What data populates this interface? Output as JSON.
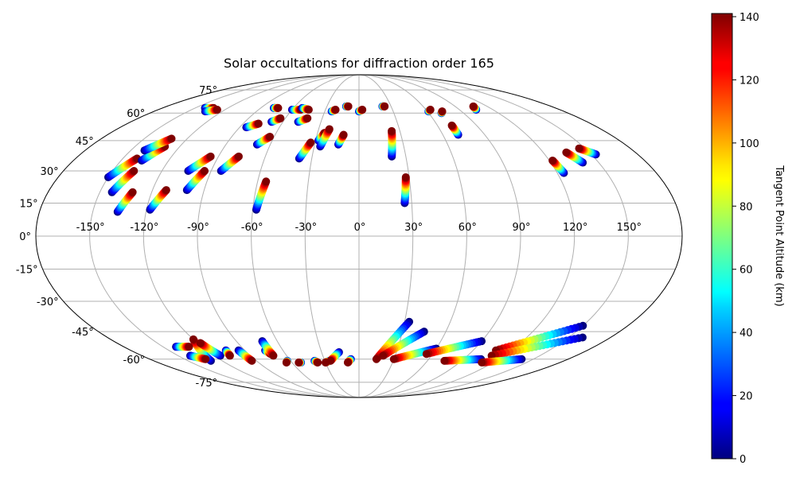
{
  "chart_data": {
    "type": "scatter",
    "projection": "mollweide",
    "title": "Solar occultations for diffraction order 165",
    "grid": true,
    "longitude_ticks": [
      "-150°",
      "-120°",
      "-90°",
      "-60°",
      "-30°",
      "0°",
      "30°",
      "60°",
      "90°",
      "120°",
      "150°"
    ],
    "latitude_ticks": [
      "75°",
      "60°",
      "45°",
      "30°",
      "15°",
      "0°",
      "-15°",
      "-30°",
      "-45°",
      "-60°",
      "-75°"
    ],
    "colorbar": {
      "label": "Tangent Point Altitude (km)",
      "colormap": "jet",
      "range": [
        0,
        141
      ],
      "ticks": [
        "0",
        "20",
        "40",
        "60",
        "80",
        "100",
        "120",
        "140"
      ]
    },
    "series": [
      {
        "values": [
          [
            -136,
            11,
            0
          ],
          [
            -131,
            20,
            141
          ]
        ]
      },
      {
        "values": [
          [
            -143,
            20,
            0
          ],
          [
            -137,
            30,
            141
          ]
        ]
      },
      {
        "values": [
          [
            -150,
            27,
            0
          ],
          [
            -141,
            36,
            141
          ]
        ]
      },
      {
        "values": [
          [
            -137,
            35,
            0
          ],
          [
            -130,
            42,
            141
          ]
        ]
      },
      {
        "values": [
          [
            -141,
            40,
            0
          ],
          [
            -131,
            46,
            141
          ]
        ]
      },
      {
        "values": [
          [
            -118,
            12,
            0
          ],
          [
            -112,
            21,
            141
          ]
        ]
      },
      {
        "values": [
          [
            -104,
            30,
            0
          ],
          [
            -95,
            37,
            141
          ]
        ]
      },
      {
        "values": [
          [
            -100,
            21,
            0
          ],
          [
            -94,
            30,
            141
          ]
        ]
      },
      {
        "values": [
          [
            -84,
            30,
            0
          ],
          [
            -77,
            37,
            141
          ]
        ]
      },
      {
        "values": [
          [
            -85,
            52,
            0
          ],
          [
            -78,
            54,
            141
          ]
        ]
      },
      {
        "values": [
          [
            -58,
            12,
            0
          ],
          [
            -55,
            25,
            141
          ]
        ]
      },
      {
        "values": [
          [
            -69,
            43,
            0
          ],
          [
            -63,
            47,
            141
          ]
        ]
      },
      {
        "values": [
          [
            -69,
            55,
            0
          ],
          [
            -64,
            57,
            141
          ]
        ]
      },
      {
        "values": [
          [
            -38,
            36,
            0
          ],
          [
            -33,
            44,
            141
          ]
        ]
      },
      {
        "values": [
          [
            -28,
            45,
            0
          ],
          [
            -25,
            49,
            141
          ]
        ]
      },
      {
        "values": [
          [
            -14,
            43,
            0
          ],
          [
            -11,
            48,
            141
          ]
        ]
      },
      {
        "values": [
          [
            -48,
            55,
            0
          ],
          [
            -42,
            57,
            141
          ]
        ]
      },
      {
        "values": [
          [
            -26,
            42,
            0
          ],
          [
            -22,
            51,
            141
          ]
        ]
      },
      {
        "values": [
          [
            -24,
            61,
            0
          ],
          [
            -21,
            62,
            141
          ]
        ]
      },
      {
        "values": [
          [
            -12,
            64,
            0
          ],
          [
            -10,
            64,
            141
          ]
        ]
      },
      {
        "values": [
          [
            0,
            61,
            0
          ],
          [
            3,
            62,
            141
          ]
        ]
      },
      {
        "values": [
          [
            21,
            37,
            0
          ],
          [
            24,
            50,
            141
          ]
        ]
      },
      {
        "values": [
          [
            26,
            15,
            0
          ],
          [
            28,
            27,
            141
          ]
        ]
      },
      {
        "values": [
          [
            22,
            64,
            0
          ],
          [
            24,
            64,
            141
          ]
        ]
      },
      {
        "values": [
          [
            61,
            61,
            0
          ],
          [
            64,
            62,
            141
          ]
        ]
      },
      {
        "values": [
          [
            71,
            60,
            0
          ],
          [
            73,
            61,
            141
          ]
        ]
      },
      {
        "values": [
          [
            71,
            48,
            0
          ],
          [
            71,
            53,
            141
          ]
        ]
      },
      {
        "values": [
          [
            105,
            62,
            0
          ],
          [
            107,
            64,
            141
          ]
        ]
      },
      {
        "values": [
          [
            124,
            29,
            0
          ],
          [
            122,
            35,
            141
          ]
        ]
      },
      {
        "values": [
          [
            140,
            34,
            0
          ],
          [
            135,
            39,
            141
          ]
        ]
      },
      {
        "values": [
          [
            153,
            38,
            0
          ],
          [
            146,
            41,
            141
          ]
        ]
      },
      {
        "values": [
          [
            -141,
            63,
            0
          ],
          [
            -133,
            63,
            141
          ]
        ]
      },
      {
        "values": [
          [
            -135,
            61,
            0
          ],
          [
            -127,
            62,
            141
          ]
        ]
      },
      {
        "values": [
          [
            -78,
            63,
            0
          ],
          [
            -74,
            63,
            141
          ]
        ]
      },
      {
        "values": [
          [
            -60,
            62,
            0
          ],
          [
            -52,
            62,
            141
          ]
        ]
      },
      {
        "values": [
          [
            -52,
            63,
            0
          ],
          [
            -45,
            62,
            141
          ]
        ]
      },
      {
        "values": [
          [
            -130,
            -61,
            0
          ],
          [
            -120,
            -49,
            141
          ]
        ]
      },
      {
        "values": [
          [
            -140,
            -53,
            0
          ],
          [
            -130,
            -53,
            141
          ]
        ]
      },
      {
        "values": [
          [
            -140,
            -58,
            0
          ],
          [
            -132,
            -60,
            141
          ]
        ]
      },
      {
        "values": [
          [
            -115,
            -58,
            0
          ],
          [
            -118,
            -51,
            141
          ]
        ]
      },
      {
        "values": [
          [
            -105,
            -55,
            0
          ],
          [
            -107,
            -58,
            141
          ]
        ]
      },
      {
        "values": [
          [
            -95,
            -55,
            0
          ],
          [
            -94,
            -61,
            141
          ]
        ]
      },
      {
        "values": [
          [
            -74,
            -55,
            0
          ],
          [
            -72,
            -57,
            141
          ]
        ]
      },
      {
        "values": [
          [
            -71,
            -50,
            0
          ],
          [
            -71,
            -58,
            141
          ]
        ]
      },
      {
        "values": [
          [
            -63,
            -61,
            0
          ],
          [
            -65,
            -62,
            141
          ]
        ]
      },
      {
        "values": [
          [
            -52,
            -62,
            0
          ],
          [
            -54,
            -62,
            141
          ]
        ]
      },
      {
        "values": [
          [
            -39,
            -61,
            0
          ],
          [
            -37,
            -62,
            141
          ]
        ]
      },
      {
        "values": [
          [
            -26,
            -61,
            0
          ],
          [
            -30,
            -62,
            141
          ]
        ]
      },
      {
        "values": [
          [
            -16,
            -56,
            0
          ],
          [
            -25,
            -61,
            141
          ]
        ]
      },
      {
        "values": [
          [
            -7,
            -60,
            0
          ],
          [
            -10,
            -62,
            141
          ]
        ]
      },
      {
        "values": [
          [
            33,
            -40,
            0
          ],
          [
            15,
            -60,
            141
          ]
        ]
      },
      {
        "values": [
          [
            45,
            -45,
            0
          ],
          [
            20,
            -58,
            141
          ]
        ]
      },
      {
        "values": [
          [
            60,
            -54,
            0
          ],
          [
            30,
            -60,
            141
          ]
        ]
      },
      {
        "values": [
          [
            90,
            -50,
            0
          ],
          [
            55,
            -57,
            141
          ]
        ]
      },
      {
        "values": [
          [
            150,
            -42,
            0
          ],
          [
            108,
            -55,
            141
          ]
        ]
      },
      {
        "values": [
          [
            160,
            -48,
            0
          ],
          [
            110,
            -58,
            141
          ]
        ]
      },
      {
        "values": [
          [
            105,
            -60,
            0
          ],
          [
            75,
            -61,
            141
          ]
        ]
      },
      {
        "values": [
          [
            140,
            -60,
            0
          ],
          [
            110,
            -62,
            141
          ]
        ]
      }
    ]
  }
}
